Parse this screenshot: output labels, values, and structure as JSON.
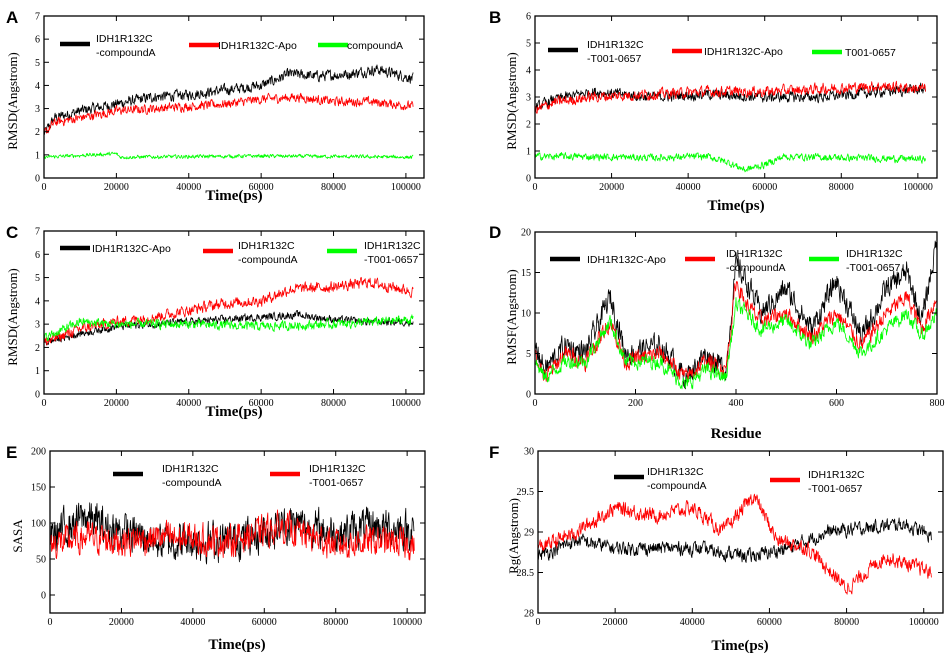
{
  "colors": {
    "black": "#000000",
    "red": "#ff0000",
    "green": "#00ff00"
  },
  "chart_data": [
    {
      "type": "line",
      "panel": "A",
      "xlabel": "Time(ps)",
      "ylabel": "RMSD(Angstrom)",
      "xlim": [
        0,
        105000
      ],
      "ylim": [
        0,
        7
      ],
      "xticks": [
        0,
        20000,
        40000,
        60000,
        80000,
        100000
      ],
      "yticks": [
        0,
        1,
        2,
        3,
        4,
        5,
        6,
        7
      ],
      "series": [
        {
          "name": "IDH1R132C -compoundA",
          "legend_lines": [
            "IDH1R132C",
            "-compoundA"
          ],
          "color": "#000000",
          "x": [
            0,
            3000,
            10000,
            20000,
            30000,
            40000,
            50000,
            60000,
            68000,
            75000,
            85000,
            92000,
            102000
          ],
          "values": [
            1.9,
            2.6,
            2.9,
            3.2,
            3.5,
            3.6,
            3.8,
            4.0,
            4.5,
            4.4,
            4.5,
            4.7,
            4.3
          ],
          "noise": 0.35
        },
        {
          "name": "IDH1R132C-Apo",
          "legend_lines": [
            "IDH1R132C-Apo"
          ],
          "color": "#ff0000",
          "x": [
            0,
            3000,
            10000,
            20000,
            30000,
            40000,
            50000,
            60000,
            70000,
            80000,
            90000,
            102000
          ],
          "values": [
            1.9,
            2.4,
            2.6,
            2.9,
            3.0,
            3.1,
            3.2,
            3.4,
            3.5,
            3.3,
            3.3,
            3.1
          ],
          "noise": 0.3
        },
        {
          "name": "compoundA",
          "legend_lines": [
            "compoundA"
          ],
          "color": "#00ff00",
          "x": [
            0,
            20000,
            21000,
            60000,
            102000
          ],
          "values": [
            0.9,
            1.05,
            0.9,
            0.95,
            0.9
          ],
          "noise": 0.12
        }
      ]
    },
    {
      "type": "line",
      "panel": "B",
      "xlabel": "Time(ps)",
      "ylabel": "RMSD(Angstrom)",
      "xlim": [
        0,
        105000
      ],
      "ylim": [
        0,
        6
      ],
      "xticks": [
        0,
        20000,
        40000,
        60000,
        80000,
        100000
      ],
      "yticks": [
        0,
        1,
        2,
        3,
        4,
        5,
        6
      ],
      "series": [
        {
          "name": "IDH1R132C -T001-0657",
          "legend_lines": [
            "IDH1R132C",
            "-T001-0657"
          ],
          "color": "#000000",
          "x": [
            0,
            5000,
            15000,
            30000,
            45000,
            60000,
            75000,
            90000,
            102000
          ],
          "values": [
            2.6,
            2.9,
            3.2,
            3.0,
            3.1,
            3.0,
            3.0,
            3.2,
            3.3
          ],
          "noise": 0.3
        },
        {
          "name": "IDH1R132C-Apo",
          "legend_lines": [
            "IDH1R132C-Apo"
          ],
          "color": "#ff0000",
          "x": [
            0,
            5000,
            15000,
            30000,
            45000,
            60000,
            75000,
            90000,
            102000
          ],
          "values": [
            2.5,
            2.8,
            3.0,
            3.1,
            3.2,
            3.2,
            3.3,
            3.4,
            3.3
          ],
          "noise": 0.3
        },
        {
          "name": "T001-0657",
          "legend_lines": [
            "T001-0657"
          ],
          "color": "#00ff00",
          "x": [
            0,
            10000,
            30000,
            45000,
            50000,
            55000,
            60000,
            65000,
            80000,
            102000
          ],
          "values": [
            0.8,
            0.8,
            0.75,
            0.8,
            0.6,
            0.3,
            0.5,
            0.8,
            0.75,
            0.7
          ],
          "noise": 0.2
        }
      ]
    },
    {
      "type": "line",
      "panel": "C",
      "xlabel": "Time(ps)",
      "ylabel": "RMSD(Angstrom)",
      "xlim": [
        0,
        105000
      ],
      "ylim": [
        0,
        7
      ],
      "xticks": [
        0,
        20000,
        40000,
        60000,
        80000,
        100000
      ],
      "yticks": [
        0,
        1,
        2,
        3,
        4,
        5,
        6,
        7
      ],
      "series": [
        {
          "name": "IDH1R132C-Apo",
          "legend_lines": [
            "IDH1R132C-Apo"
          ],
          "color": "#000000",
          "x": [
            0,
            10000,
            20000,
            40000,
            60000,
            70000,
            80000,
            90000,
            102000
          ],
          "values": [
            2.2,
            2.6,
            2.9,
            3.1,
            3.3,
            3.4,
            3.2,
            3.1,
            3.1
          ],
          "noise": 0.25
        },
        {
          "name": "IDH1R132C -compoundA",
          "legend_lines": [
            "IDH1R132C",
            "-compoundA"
          ],
          "color": "#ff0000",
          "x": [
            0,
            10000,
            20000,
            30000,
            40000,
            50000,
            60000,
            68000,
            80000,
            90000,
            102000
          ],
          "values": [
            2.2,
            2.8,
            3.1,
            3.3,
            3.6,
            3.9,
            4.0,
            4.5,
            4.6,
            4.8,
            4.4
          ],
          "noise": 0.35
        },
        {
          "name": "IDH1R132C -T001-0657",
          "legend_lines": [
            "IDH1R132C",
            "-T001-0657"
          ],
          "color": "#00ff00",
          "x": [
            0,
            10000,
            20000,
            40000,
            60000,
            80000,
            102000
          ],
          "values": [
            2.4,
            3.1,
            3.0,
            3.0,
            2.9,
            3.0,
            3.2
          ],
          "noise": 0.3
        }
      ]
    },
    {
      "type": "line",
      "panel": "D",
      "xlabel": "Residue",
      "ylabel": "RMSF(Angstrom)",
      "xlim": [
        0,
        800
      ],
      "ylim": [
        0,
        20
      ],
      "xticks": [
        0,
        200,
        400,
        600,
        800
      ],
      "yticks": [
        0,
        5,
        10,
        15,
        20
      ],
      "series": [
        {
          "name": "IDH1R132C-Apo",
          "legend_lines": [
            "IDH1R132C-Apo"
          ],
          "color": "#000000",
          "x": [
            0,
            20,
            60,
            100,
            150,
            180,
            250,
            300,
            340,
            380,
            400,
            420,
            450,
            500,
            550,
            600,
            650,
            700,
            740,
            770,
            800
          ],
          "values": [
            6,
            3,
            6,
            5,
            12,
            5,
            6,
            2,
            5,
            3,
            16,
            14,
            10,
            13,
            8,
            14,
            7,
            13,
            15,
            9,
            19
          ],
          "noise": 2.2
        },
        {
          "name": "IDH1R132C -compoundA",
          "legend_lines": [
            "IDH1R132C",
            "-compoundA"
          ],
          "color": "#ff0000",
          "x": [
            0,
            20,
            60,
            100,
            150,
            180,
            250,
            300,
            340,
            380,
            400,
            420,
            450,
            500,
            550,
            600,
            650,
            700,
            740,
            770,
            800
          ],
          "values": [
            5,
            2,
            5,
            4,
            9,
            4,
            5,
            2,
            4,
            3,
            14,
            11,
            9,
            10,
            7,
            10,
            6,
            10,
            12,
            8,
            12
          ],
          "noise": 1.6
        },
        {
          "name": "IDH1R132C -T001-0657",
          "legend_lines": [
            "IDH1R132C",
            "-T001-0657"
          ],
          "color": "#00ff00",
          "x": [
            0,
            20,
            60,
            100,
            150,
            180,
            250,
            300,
            340,
            380,
            400,
            420,
            450,
            500,
            550,
            600,
            650,
            700,
            740,
            770,
            800
          ],
          "values": [
            4,
            2,
            4,
            4,
            9,
            4,
            4,
            1,
            3,
            2,
            11,
            10,
            8,
            9,
            6,
            9,
            5,
            8,
            10,
            7,
            10
          ],
          "noise": 1.4
        }
      ]
    },
    {
      "type": "line",
      "panel": "E",
      "xlabel": "Time(ps)",
      "ylabel": "SASA",
      "xlim": [
        0,
        105000
      ],
      "ylim": [
        -25,
        200
      ],
      "xticks": [
        0,
        20000,
        40000,
        60000,
        80000,
        100000
      ],
      "yticks": [
        0,
        50,
        100,
        150,
        200
      ],
      "series": [
        {
          "name": "IDH1R132C -compoundA",
          "legend_lines": [
            "IDH1R132C",
            "-compoundA"
          ],
          "color": "#000000",
          "x": [
            0,
            10000,
            15000,
            30000,
            50000,
            62000,
            68000,
            80000,
            90000,
            102000
          ],
          "values": [
            80,
            110,
            95,
            75,
            75,
            90,
            100,
            85,
            95,
            90
          ],
          "noise": 40
        },
        {
          "name": "IDH1R132C -T001-0657",
          "legend_lines": [
            "IDH1R132C",
            "-T001-0657"
          ],
          "color": "#ff0000",
          "x": [
            0,
            10000,
            20000,
            30000,
            50000,
            65000,
            80000,
            90000,
            102000
          ],
          "values": [
            70,
            80,
            75,
            80,
            75,
            95,
            70,
            75,
            70
          ],
          "noise": 32
        }
      ]
    },
    {
      "type": "line",
      "panel": "F",
      "xlabel": "Time(ps)",
      "ylabel": "Rg(Angstrom)",
      "xlim": [
        0,
        105000
      ],
      "ylim": [
        28,
        30
      ],
      "xticks": [
        0,
        20000,
        40000,
        60000,
        80000,
        100000
      ],
      "yticks": [
        28,
        28.5,
        29,
        29.5,
        30
      ],
      "series": [
        {
          "name": "IDH1R132C -compoundA",
          "legend_lines": [
            "IDH1R132C",
            "-compoundA"
          ],
          "color": "#000000",
          "x": [
            0,
            10000,
            20000,
            40000,
            55000,
            65000,
            75000,
            85000,
            95000,
            102000
          ],
          "values": [
            28.7,
            28.9,
            28.8,
            28.8,
            28.7,
            28.8,
            29.0,
            29.05,
            29.1,
            28.95
          ],
          "noise": 0.13
        },
        {
          "name": "IDH1R132C -T001-0657",
          "legend_lines": [
            "IDH1R132C",
            "-T001-0657"
          ],
          "color": "#ff0000",
          "x": [
            0,
            10000,
            20000,
            30000,
            40000,
            48000,
            56000,
            62000,
            70000,
            80000,
            90000,
            102000
          ],
          "values": [
            28.8,
            29.0,
            29.3,
            29.2,
            29.3,
            29.0,
            29.45,
            28.9,
            28.8,
            28.3,
            28.7,
            28.5
          ],
          "noise": 0.14
        }
      ]
    }
  ]
}
